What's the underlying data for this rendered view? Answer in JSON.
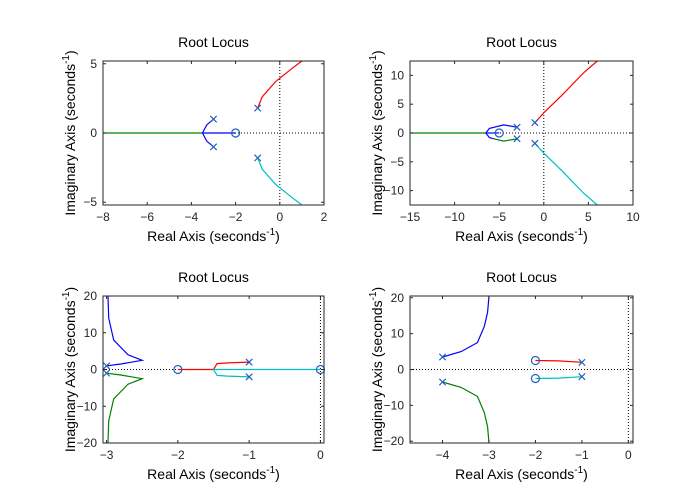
{
  "chart_data": [
    {
      "type": "line",
      "title": "Root Locus",
      "xlabel": "Real Axis (seconds",
      "ylabel": "Imaginary Axis (seconds",
      "unit_superscript": "-1",
      "xlim": [
        -8,
        2
      ],
      "ylim": [
        -5.2,
        5.2
      ],
      "xticks": [
        -8,
        -6,
        -4,
        -2,
        0,
        2
      ],
      "yticks": [
        -5,
        0,
        5
      ],
      "poles": [
        [
          -1,
          1.8
        ],
        [
          -1,
          -1.8
        ],
        [
          -3,
          1
        ],
        [
          -3,
          -1
        ]
      ],
      "zeros": [
        [
          -2,
          0
        ]
      ],
      "series": [
        {
          "color": "#ff0000",
          "points": [
            [
              -1,
              1.8
            ],
            [
              -0.8,
              2.6
            ],
            [
              -0.2,
              3.7
            ],
            [
              0.5,
              4.6
            ],
            [
              1,
              5.2
            ]
          ]
        },
        {
          "color": "#00bfbf",
          "points": [
            [
              -1,
              -1.8
            ],
            [
              -0.8,
              -2.6
            ],
            [
              -0.2,
              -3.7
            ],
            [
              0.5,
              -4.6
            ],
            [
              1,
              -5.2
            ]
          ]
        },
        {
          "color": "#0000ff",
          "points": [
            [
              -3,
              1
            ],
            [
              -3.3,
              0.6
            ],
            [
              -3.5,
              0
            ],
            [
              -3.3,
              -0.6
            ],
            [
              -3,
              -1
            ]
          ]
        },
        {
          "color": "#0000ff",
          "points": [
            [
              -3.5,
              0
            ],
            [
              -2,
              0
            ]
          ]
        },
        {
          "color": "#008000",
          "points": [
            [
              -3.5,
              0
            ],
            [
              -8,
              0
            ]
          ]
        }
      ]
    },
    {
      "type": "line",
      "title": "Root Locus",
      "xlabel": "Real Axis (seconds",
      "ylabel": "Imaginary Axis (seconds",
      "unit_superscript": "-1",
      "xlim": [
        -15,
        10
      ],
      "ylim": [
        -12.5,
        12.5
      ],
      "xticks": [
        -15,
        -10,
        -5,
        0,
        5,
        10
      ],
      "yticks": [
        -10,
        -5,
        0,
        5,
        10
      ],
      "poles": [
        [
          -1,
          1.8
        ],
        [
          -1,
          -1.8
        ],
        [
          -3,
          1
        ],
        [
          -3,
          -1
        ]
      ],
      "zeros": [
        [
          -5,
          0
        ]
      ],
      "series": [
        {
          "color": "#ff0000",
          "points": [
            [
              -1,
              1.8
            ],
            [
              0,
              3.5
            ],
            [
              2,
              6.5
            ],
            [
              4.5,
              10.5
            ],
            [
              6,
              12.5
            ]
          ]
        },
        {
          "color": "#00bfbf",
          "points": [
            [
              -1,
              -1.8
            ],
            [
              0,
              -3.5
            ],
            [
              2,
              -6.5
            ],
            [
              4.5,
              -10.5
            ],
            [
              6,
              -12.5
            ]
          ]
        },
        {
          "color": "#0000ff",
          "points": [
            [
              -3,
              1
            ],
            [
              -4.5,
              1.4
            ],
            [
              -6.1,
              0.8
            ],
            [
              -6.5,
              0
            ],
            [
              -6.1,
              -0.8
            ],
            [
              -5.6,
              -1
            ]
          ]
        },
        {
          "color": "#008000",
          "points": [
            [
              -3,
              -1
            ],
            [
              -4.5,
              -1.4
            ],
            [
              -5.6,
              -1
            ]
          ]
        },
        {
          "color": "#008000",
          "points": [
            [
              -6.5,
              0
            ],
            [
              -15,
              0
            ]
          ]
        },
        {
          "color": "#0000ff",
          "points": [
            [
              -6.5,
              0
            ],
            [
              -5,
              0
            ]
          ]
        }
      ]
    },
    {
      "type": "line",
      "title": "Root Locus",
      "xlabel": "Real Axis (seconds",
      "ylabel": "Imaginary Axis (seconds",
      "unit_superscript": "-1",
      "xlim": [
        -3.05,
        0.05
      ],
      "ylim": [
        -20,
        20
      ],
      "xticks": [
        -3,
        -2,
        -1,
        0
      ],
      "yticks": [
        -20,
        -10,
        0,
        10,
        20
      ],
      "poles": [
        [
          -1,
          2
        ],
        [
          -1,
          -2
        ],
        [
          -3,
          1
        ],
        [
          -3,
          -1
        ]
      ],
      "zeros": [
        [
          -2,
          0
        ],
        [
          0,
          0
        ]
      ],
      "series": [
        {
          "color": "#0000ff",
          "points": [
            [
              -3,
              1
            ],
            [
              -2.8,
              1.5
            ],
            [
              -2.5,
              2.5
            ],
            [
              -2.7,
              4
            ],
            [
              -2.9,
              8
            ],
            [
              -2.97,
              14
            ],
            [
              -2.98,
              20
            ]
          ]
        },
        {
          "color": "#008000",
          "points": [
            [
              -3,
              -1
            ],
            [
              -2.8,
              -1.5
            ],
            [
              -2.5,
              -2.5
            ],
            [
              -2.7,
              -4
            ],
            [
              -2.9,
              -8
            ],
            [
              -2.97,
              -14
            ],
            [
              -2.98,
              -20
            ]
          ]
        },
        {
          "color": "#ff0000",
          "points": [
            [
              -1,
              2
            ],
            [
              -1.3,
              1.8
            ],
            [
              -1.45,
              1.6
            ],
            [
              -1.5,
              0
            ],
            [
              -2,
              0
            ]
          ]
        },
        {
          "color": "#00bfbf",
          "points": [
            [
              -1,
              -2
            ],
            [
              -1.3,
              -1.8
            ],
            [
              -1.45,
              -1.6
            ],
            [
              -1.5,
              0
            ],
            [
              0,
              0
            ]
          ]
        }
      ]
    },
    {
      "type": "line",
      "title": "Root Locus",
      "xlabel": "Real Axis (seconds",
      "ylabel": "Imaginary Axis (seconds",
      "unit_superscript": "-1",
      "xlim": [
        -4.7,
        0.1
      ],
      "ylim": [
        -20.5,
        20.5
      ],
      "xticks": [
        -4,
        -3,
        -2,
        -1,
        0
      ],
      "yticks": [
        -20,
        -10,
        0,
        10,
        20
      ],
      "poles": [
        [
          -4,
          3.5
        ],
        [
          -4,
          -3.5
        ],
        [
          -1,
          2
        ],
        [
          -1,
          -2
        ]
      ],
      "zeros": [
        [
          -2,
          2.5
        ],
        [
          -2,
          -2.5
        ]
      ],
      "series": [
        {
          "color": "#0000ff",
          "points": [
            [
              -4,
              3.5
            ],
            [
              -3.6,
              5
            ],
            [
              -3.25,
              7.5
            ],
            [
              -3.1,
              12
            ],
            [
              -3.03,
              16
            ],
            [
              -3,
              20.5
            ]
          ]
        },
        {
          "color": "#008000",
          "points": [
            [
              -4,
              -3.5
            ],
            [
              -3.6,
              -5
            ],
            [
              -3.25,
              -7.5
            ],
            [
              -3.1,
              -12
            ],
            [
              -3.03,
              -16
            ],
            [
              -3,
              -20.5
            ]
          ]
        },
        {
          "color": "#ff0000",
          "points": [
            [
              -1,
              2
            ],
            [
              -1.5,
              2.4
            ],
            [
              -2,
              2.5
            ]
          ]
        },
        {
          "color": "#00bfbf",
          "points": [
            [
              -1,
              -2
            ],
            [
              -1.5,
              -2.4
            ],
            [
              -2,
              -2.5
            ]
          ]
        }
      ]
    }
  ]
}
